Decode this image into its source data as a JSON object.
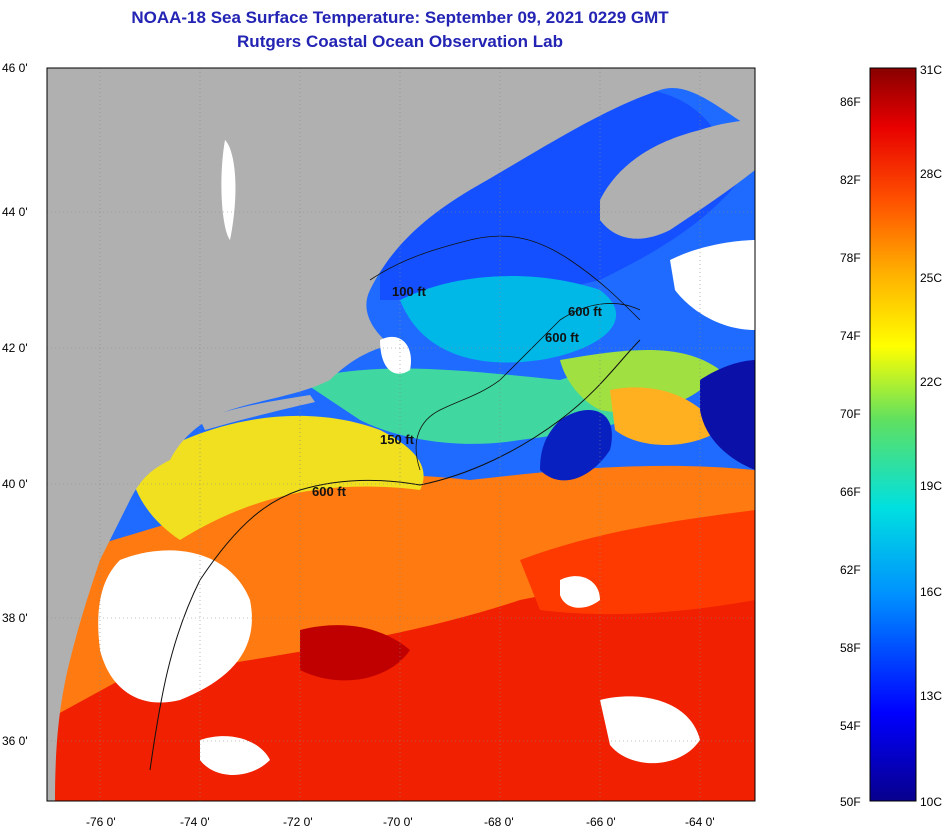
{
  "title": "NOAA-18 Sea Surface Temperature:  September 09, 2021 0229 GMT",
  "subtitle": "Rutgers Coastal Ocean Observation Lab",
  "map": {
    "lat_range": [
      35,
      46
    ],
    "lon_range": [
      -77,
      -63
    ],
    "lat_labels": [
      "46 0'",
      "44 0'",
      "42 0'",
      "40 0'",
      "38 0'",
      "36 0'"
    ],
    "lon_labels": [
      "-76 0'",
      "-74 0'",
      "-72 0'",
      "-70 0'",
      "-68 0'",
      "-66 0'",
      "-64 0'"
    ],
    "contour_labels": [
      "100 ft",
      "600 ft",
      "600 ft",
      "150 ft",
      "600 ft"
    ]
  },
  "colorbar": {
    "fahrenheit_labels": [
      "86F",
      "82F",
      "78F",
      "74F",
      "70F",
      "66F",
      "62F",
      "58F",
      "54F",
      "50F"
    ],
    "celsius_labels": [
      "31C",
      "28C",
      "25C",
      "22C",
      "19C",
      "16C",
      "13C",
      "10C"
    ],
    "range_c": [
      10,
      31
    ]
  },
  "colors": {
    "title": "#2323b4",
    "land": "#b0b0b0",
    "cloud": "#ffffff",
    "sst_cold": "#08088c",
    "sst_warm": "#ff2a00"
  }
}
